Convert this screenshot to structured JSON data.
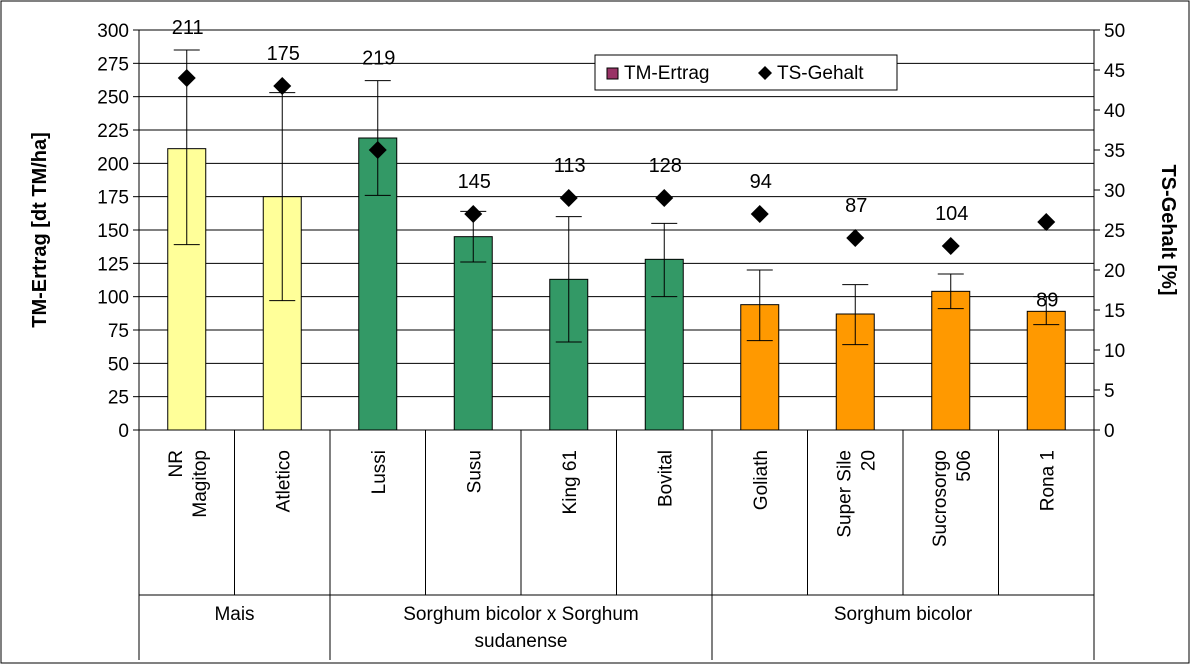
{
  "chart_data": {
    "type": "bar",
    "y_left_label": "TM-Ertrag [dt TM/ha]",
    "y_right_label": "TS-Gehalt [%]",
    "y_left_range": [
      0,
      300
    ],
    "y_left_ticks": [
      "0",
      "25",
      "50",
      "75",
      "100",
      "125",
      "150",
      "175",
      "200",
      "225",
      "250",
      "275",
      "300"
    ],
    "y_right_range": [
      0,
      50
    ],
    "y_right_ticks": [
      "0",
      "5",
      "10",
      "15",
      "20",
      "25",
      "30",
      "35",
      "40",
      "45",
      "50"
    ],
    "grid": true,
    "legend_position": "top-right",
    "legend": [
      {
        "name": "TM-Ertrag",
        "color": "#993366"
      },
      {
        "name": "TS-Gehalt",
        "marker": "diamond",
        "color": "#000000"
      }
    ],
    "groups": [
      {
        "label_lines": [
          "Mais"
        ],
        "start": 0,
        "end": 2,
        "color": "#FFFF99"
      },
      {
        "label_lines": [
          "Sorghum bicolor x  Sorghum",
          "sudanense"
        ],
        "start": 2,
        "end": 6,
        "color": "#339966"
      },
      {
        "label_lines": [
          "Sorghum bicolor"
        ],
        "start": 6,
        "end": 10,
        "color": "#FF9900"
      }
    ],
    "categories": [
      {
        "lines": [
          "NR",
          "Magitop"
        ],
        "yield": 211,
        "yield_label": "211",
        "err_low": 139,
        "err_high": 285,
        "ts": 44
      },
      {
        "lines": [
          "Atletico"
        ],
        "yield": 175,
        "yield_label": "175",
        "err_low": 97,
        "err_high": 253,
        "ts": 43
      },
      {
        "lines": [
          "Lussi"
        ],
        "yield": 219,
        "yield_label": "219",
        "err_low": 176,
        "err_high": 262,
        "ts": 35
      },
      {
        "lines": [
          "Susu"
        ],
        "yield": 145,
        "yield_label": "145",
        "err_low": 126,
        "err_high": 164,
        "ts": 27
      },
      {
        "lines": [
          "King 61"
        ],
        "yield": 113,
        "yield_label": "113",
        "err_low": 66,
        "err_high": 160,
        "ts": 29
      },
      {
        "lines": [
          "Bovital"
        ],
        "yield": 128,
        "yield_label": "128",
        "err_low": 100,
        "err_high": 155,
        "ts": 29
      },
      {
        "lines": [
          "Goliath"
        ],
        "yield": 94,
        "yield_label": "94",
        "err_low": 67,
        "err_high": 120,
        "ts": 27
      },
      {
        "lines": [
          "Super Sile",
          "20"
        ],
        "yield": 87,
        "yield_label": "87",
        "err_low": 64,
        "err_high": 109,
        "ts": 24
      },
      {
        "lines": [
          "Sucrosorgo",
          "506"
        ],
        "yield": 104,
        "yield_label": "104",
        "err_low": 91,
        "err_high": 117,
        "ts": 23
      },
      {
        "lines": [
          "Rona 1"
        ],
        "yield": 89,
        "yield_label": "89",
        "err_low": 79,
        "err_high": 100,
        "ts": 26
      }
    ]
  }
}
